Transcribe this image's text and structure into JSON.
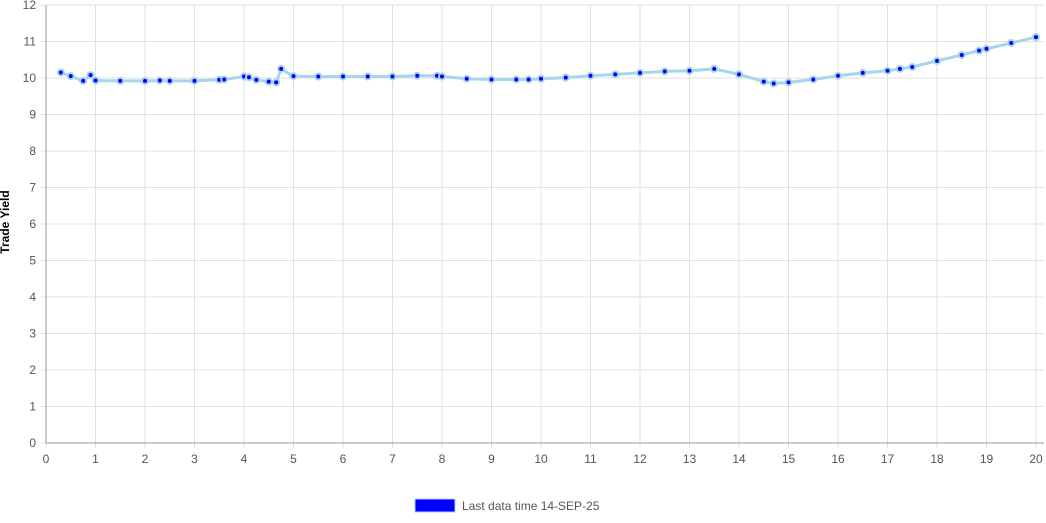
{
  "chart_data": {
    "type": "line",
    "ylabel": "Trade Yield",
    "xlabel": "",
    "xlim": [
      0,
      20
    ],
    "ylim": [
      0,
      12
    ],
    "x_ticks": [
      0,
      1,
      2,
      3,
      4,
      5,
      6,
      7,
      8,
      9,
      10,
      11,
      12,
      13,
      14,
      15,
      16,
      17,
      18,
      19,
      20
    ],
    "y_ticks": [
      0,
      1,
      2,
      3,
      4,
      5,
      6,
      7,
      8,
      9,
      10,
      11,
      12
    ],
    "grid": true,
    "legend_position": "bottom",
    "colors": {
      "line": "#a8d4ec",
      "point_fill": "#0000ff",
      "point_ring": "#a8d4ec",
      "legend_swatch": "#0000ff",
      "grid": "#e0e0e0",
      "axis": "#999999"
    },
    "series": [
      {
        "name": "Last data time 14-SEP-25",
        "points": [
          [
            0.3,
            10.15
          ],
          [
            0.5,
            10.05
          ],
          [
            0.75,
            9.92
          ],
          [
            0.9,
            10.08
          ],
          [
            1.0,
            9.93
          ],
          [
            1.5,
            9.92
          ],
          [
            2.0,
            9.92
          ],
          [
            2.3,
            9.93
          ],
          [
            2.5,
            9.92
          ],
          [
            3.0,
            9.92
          ],
          [
            3.5,
            9.95
          ],
          [
            3.6,
            9.96
          ],
          [
            4.0,
            10.04
          ],
          [
            4.1,
            10.02
          ],
          [
            4.25,
            9.95
          ],
          [
            4.5,
            9.9
          ],
          [
            4.65,
            9.88
          ],
          [
            4.75,
            10.25
          ],
          [
            5.0,
            10.05
          ],
          [
            5.5,
            10.04
          ],
          [
            6.0,
            10.04
          ],
          [
            6.5,
            10.04
          ],
          [
            7.0,
            10.04
          ],
          [
            7.5,
            10.06
          ],
          [
            7.9,
            10.06
          ],
          [
            8.0,
            10.04
          ],
          [
            8.5,
            9.98
          ],
          [
            9.0,
            9.96
          ],
          [
            9.5,
            9.96
          ],
          [
            9.75,
            9.96
          ],
          [
            10.0,
            9.98
          ],
          [
            10.5,
            10.01
          ],
          [
            11.0,
            10.06
          ],
          [
            11.5,
            10.1
          ],
          [
            12.0,
            10.14
          ],
          [
            12.5,
            10.18
          ],
          [
            13.0,
            10.2
          ],
          [
            13.5,
            10.25
          ],
          [
            14.0,
            10.1
          ],
          [
            14.5,
            9.9
          ],
          [
            14.7,
            9.85
          ],
          [
            15.0,
            9.88
          ],
          [
            15.5,
            9.96
          ],
          [
            16.0,
            10.06
          ],
          [
            16.5,
            10.14
          ],
          [
            17.0,
            10.2
          ],
          [
            17.25,
            10.25
          ],
          [
            17.5,
            10.3
          ],
          [
            18.0,
            10.47
          ],
          [
            18.5,
            10.63
          ],
          [
            18.85,
            10.75
          ],
          [
            19.0,
            10.8
          ],
          [
            19.5,
            10.96
          ],
          [
            20.0,
            11.12
          ]
        ]
      }
    ]
  }
}
